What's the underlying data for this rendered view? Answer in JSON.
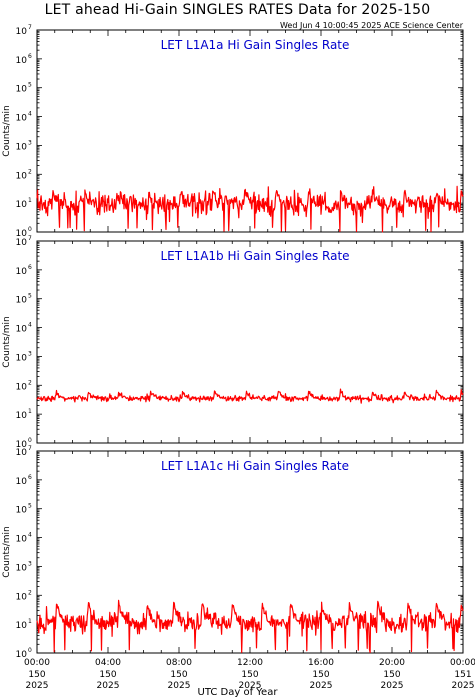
{
  "header": {
    "title": "LET ahead Hi-Gain SINGLES RATES Data for 2025-150",
    "timestamp": "Wed Jun  4 10:00:45 2025 ACE Science Center"
  },
  "x_axis_title": "UTC Day of Year",
  "colors": {
    "series": "#ff0000",
    "panel_title": "#0000cc",
    "axis": "#000000"
  },
  "chart_data": [
    {
      "type": "line",
      "title": "LET L1A1a Hi Gain Singles Rate",
      "ylabel": "Counts/min",
      "yscale": "log",
      "ylim": [
        1,
        10000000
      ],
      "ytick_exponents": [
        "0",
        "1",
        "2",
        "3",
        "4",
        "5",
        "6",
        "7"
      ],
      "xlim_hours": [
        0,
        24
      ],
      "base": 9,
      "noise": 0.45,
      "spike_peak": 25,
      "drops": true,
      "spikes_hours": [
        0.9,
        2.7,
        4.5,
        6.3,
        8.1,
        9.9,
        11.7,
        13.5,
        15.3,
        17.1,
        18.9,
        20.7,
        22.5,
        23.9
      ]
    },
    {
      "type": "line",
      "title": "LET L1A1b Hi Gain Singles Rate",
      "ylabel": "Counts/min",
      "yscale": "log",
      "ylim": [
        1,
        10000000
      ],
      "ytick_exponents": [
        "0",
        "1",
        "2",
        "3",
        "4",
        "5",
        "6",
        "7"
      ],
      "xlim_hours": [
        0,
        24
      ],
      "base": 35,
      "noise": 0.12,
      "spike_peak": 60,
      "drops": false,
      "spikes_hours": [
        1.1,
        2.9,
        4.6,
        6.4,
        8.2,
        10.0,
        11.8,
        13.6,
        15.3,
        17.1,
        18.9,
        20.7,
        22.5,
        23.9
      ]
    },
    {
      "type": "line",
      "title": "LET L1A1c Hi Gain Singles Rate",
      "ylabel": "Counts/min",
      "yscale": "log",
      "ylim": [
        1,
        10000000
      ],
      "ytick_exponents": [
        "0",
        "1",
        "2",
        "3",
        "4",
        "5",
        "6",
        "7"
      ],
      "xlim_hours": [
        0,
        24
      ],
      "base": 11,
      "noise": 0.4,
      "spike_peak": 50,
      "drops": true,
      "spikes_hours": [
        1.1,
        2.9,
        4.6,
        6.2,
        7.7,
        9.3,
        11.0,
        12.7,
        14.3,
        16.0,
        17.6,
        19.2,
        20.9,
        22.5,
        23.9
      ]
    }
  ],
  "x_ticks": [
    {
      "time": "00:00",
      "doy": "150",
      "year": "2025"
    },
    {
      "time": "04:00",
      "doy": "150",
      "year": "2025"
    },
    {
      "time": "08:00",
      "doy": "150",
      "year": "2025"
    },
    {
      "time": "12:00",
      "doy": "150",
      "year": "2025"
    },
    {
      "time": "16:00",
      "doy": "150",
      "year": "2025"
    },
    {
      "time": "20:00",
      "doy": "150",
      "year": "2025"
    },
    {
      "time": "00:00",
      "doy": "151",
      "year": "2025"
    }
  ]
}
